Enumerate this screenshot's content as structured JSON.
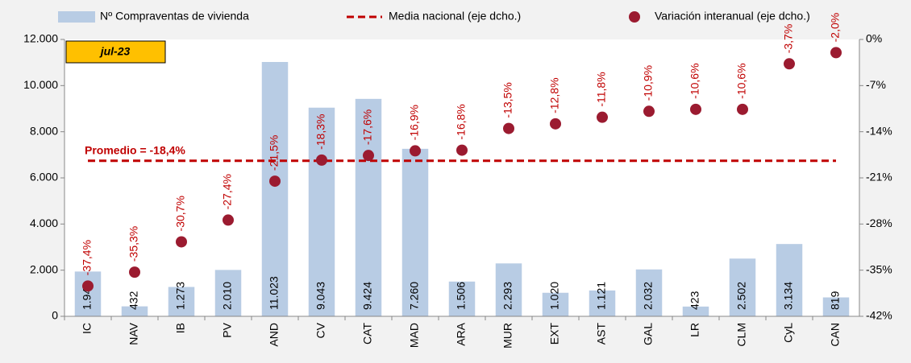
{
  "chart_data": {
    "type": "bar",
    "annotation": "jul-23",
    "categories": [
      "IC",
      "NAV",
      "IB",
      "PV",
      "AND",
      "CV",
      "CAT",
      "MAD",
      "ARA",
      "MUR",
      "EXT",
      "AST",
      "GAL",
      "LR",
      "CLM",
      "CyL",
      "CAN"
    ],
    "series": [
      {
        "name": "Nº Compraventas de vivienda",
        "color": "#b8cce4",
        "values": [
          1941,
          432,
          1273,
          2010,
          11023,
          9043,
          9424,
          7260,
          1506,
          2293,
          1020,
          1121,
          2032,
          423,
          2502,
          3134,
          819
        ],
        "value_labels": [
          "1.941",
          "432",
          "1.273",
          "2.010",
          "11.023",
          "9.043",
          "9.424",
          "7.260",
          "1.506",
          "2.293",
          "1.020",
          "1.121",
          "2.032",
          "423",
          "2.502",
          "3.134",
          "819"
        ]
      },
      {
        "name": "Variación interanual (eje dcho.)",
        "type": "scatter",
        "axis": "y2",
        "color": "#9b1b30",
        "values": [
          -37.4,
          -35.3,
          -30.7,
          -27.4,
          -21.5,
          -18.3,
          -17.6,
          -16.9,
          -16.8,
          -13.5,
          -12.8,
          -11.8,
          -10.9,
          -10.6,
          -10.6,
          -3.7,
          -2.0
        ],
        "value_labels": [
          "-37,4%",
          "-35,3%",
          "-30,7%",
          "-27,4%",
          "-21,5%",
          "-18,3%",
          "-17,6%",
          "-16,9%",
          "-16,8%",
          "-13,5%",
          "-12,8%",
          "-11,8%",
          "-10,9%",
          "-10,6%",
          "-10,6%",
          "-3,7%",
          "-2,0%"
        ]
      }
    ],
    "reference_line": {
      "name": "Media nacional (eje dcho.)",
      "axis": "y2",
      "value": -18.4,
      "label": "Promedio = -18,4%",
      "color": "#c00000"
    },
    "ylim": [
      0,
      12000
    ],
    "yticks": [
      0,
      {
        "value": 2000,
        "label": "2.000"
      },
      {
        "value": 4000,
        "label": "4.000"
      },
      {
        "value": 6000,
        "label": "6.000"
      },
      {
        "value": 8000,
        "label": "8.000"
      },
      {
        "value": 10000,
        "label": "10.000"
      },
      {
        "value": 12000,
        "label": "12.000"
      }
    ],
    "y2lim": [
      -42,
      0
    ],
    "y2ticks": [
      {
        "value": -42,
        "label": "-42%"
      },
      {
        "value": -35,
        "label": "-35%"
      },
      {
        "value": -28,
        "label": "-28%"
      },
      {
        "value": -21,
        "label": "-21%"
      },
      {
        "value": -14,
        "label": "-14%"
      },
      {
        "value": -7,
        "label": "-7%"
      },
      {
        "value": 0,
        "label": "0%"
      }
    ],
    "grid": false
  }
}
